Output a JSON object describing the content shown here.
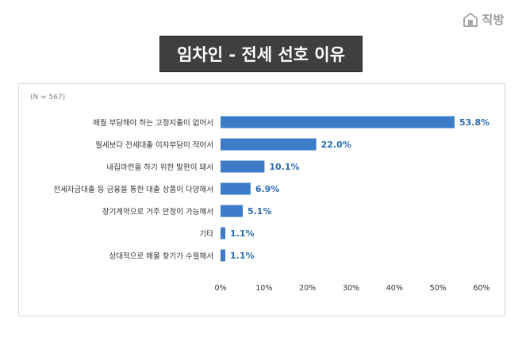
{
  "brand": {
    "name": "직방",
    "icon": "house-logo-icon"
  },
  "title": "임차인 - 전세 선호 이유",
  "note": "(N = 567)",
  "chart_data": {
    "type": "bar",
    "orientation": "horizontal",
    "categories": [
      "매월 부담해야 하는 고정지출이 없어서",
      "월세보다 전세대출 이자부담이 적어서",
      "내집마련을 하기 위한 발판이 돼서",
      "전세자금대출 등 금융을 통한 대출 상품이 다양해서",
      "장기계약으로 거주 안정이 가능해서",
      "기타",
      "상대적으로 매물 찾기가 수월해서"
    ],
    "values": [
      53.8,
      22.0,
      10.1,
      6.9,
      5.1,
      1.1,
      1.1
    ],
    "value_labels": [
      "53.8%",
      "22.0%",
      "10.1%",
      "6.9%",
      "5.1%",
      "1.1%",
      "1.1%"
    ],
    "xlim": [
      0,
      60
    ],
    "ticks": [
      "0%",
      "10%",
      "20%",
      "30%",
      "40%",
      "50%",
      "60%"
    ],
    "bar_color": "#3d7cc9",
    "label_color": "#2e6db4",
    "grid": false,
    "legend": "none"
  }
}
